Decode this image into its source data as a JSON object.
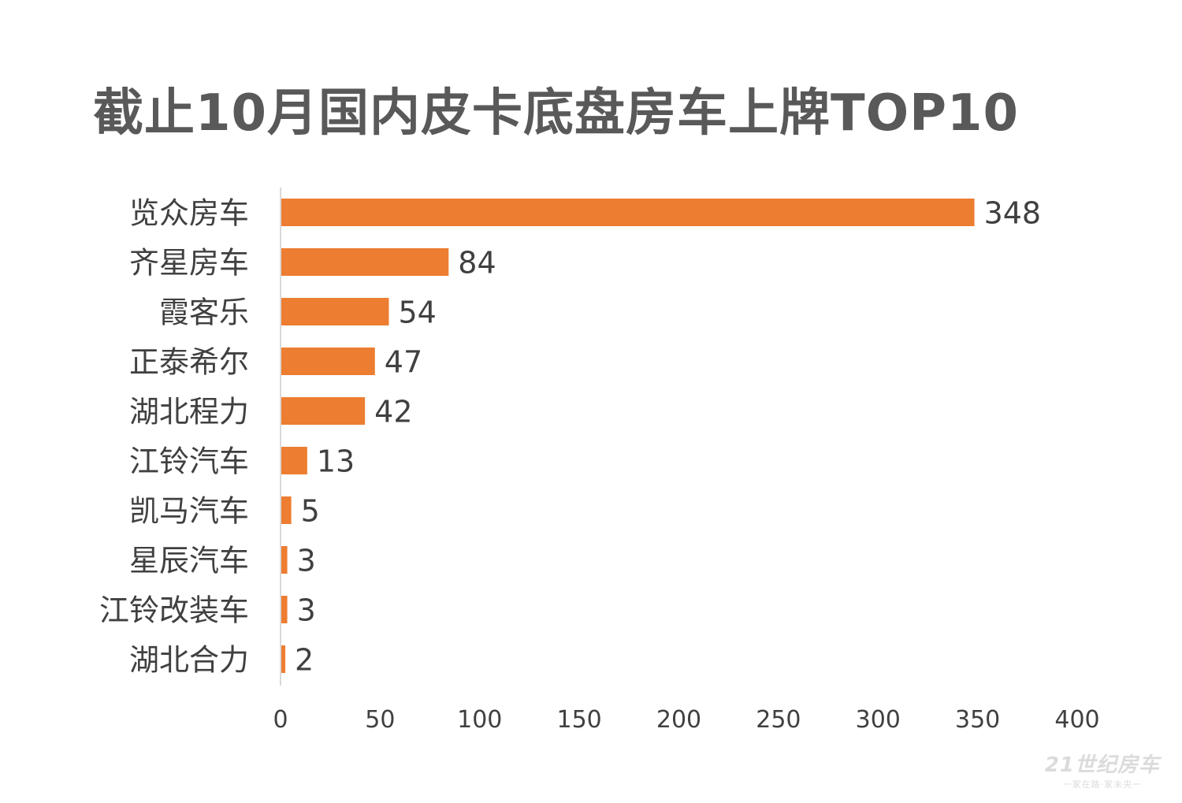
{
  "chart_data": {
    "type": "bar",
    "orientation": "horizontal",
    "title": "截止10月国内皮卡底盘房车上牌TOP10",
    "categories": [
      "览众房车",
      "齐星房车",
      "霞客乐",
      "正泰希尔",
      "湖北程力",
      "江铃汽车",
      "凯马汽车",
      "星辰汽车",
      "江铃改装车",
      "湖北合力"
    ],
    "values": [
      348,
      84,
      54,
      47,
      42,
      13,
      5,
      3,
      3,
      2
    ],
    "xlim": [
      0,
      400
    ],
    "xticks": [
      0,
      50,
      100,
      150,
      200,
      250,
      300,
      350,
      400
    ],
    "xlabel": "",
    "ylabel": "",
    "grid": false,
    "bar_color": "#ED7D31"
  },
  "watermark": {
    "main": "21世纪房车",
    "sub": "一家在路·家未央一"
  }
}
